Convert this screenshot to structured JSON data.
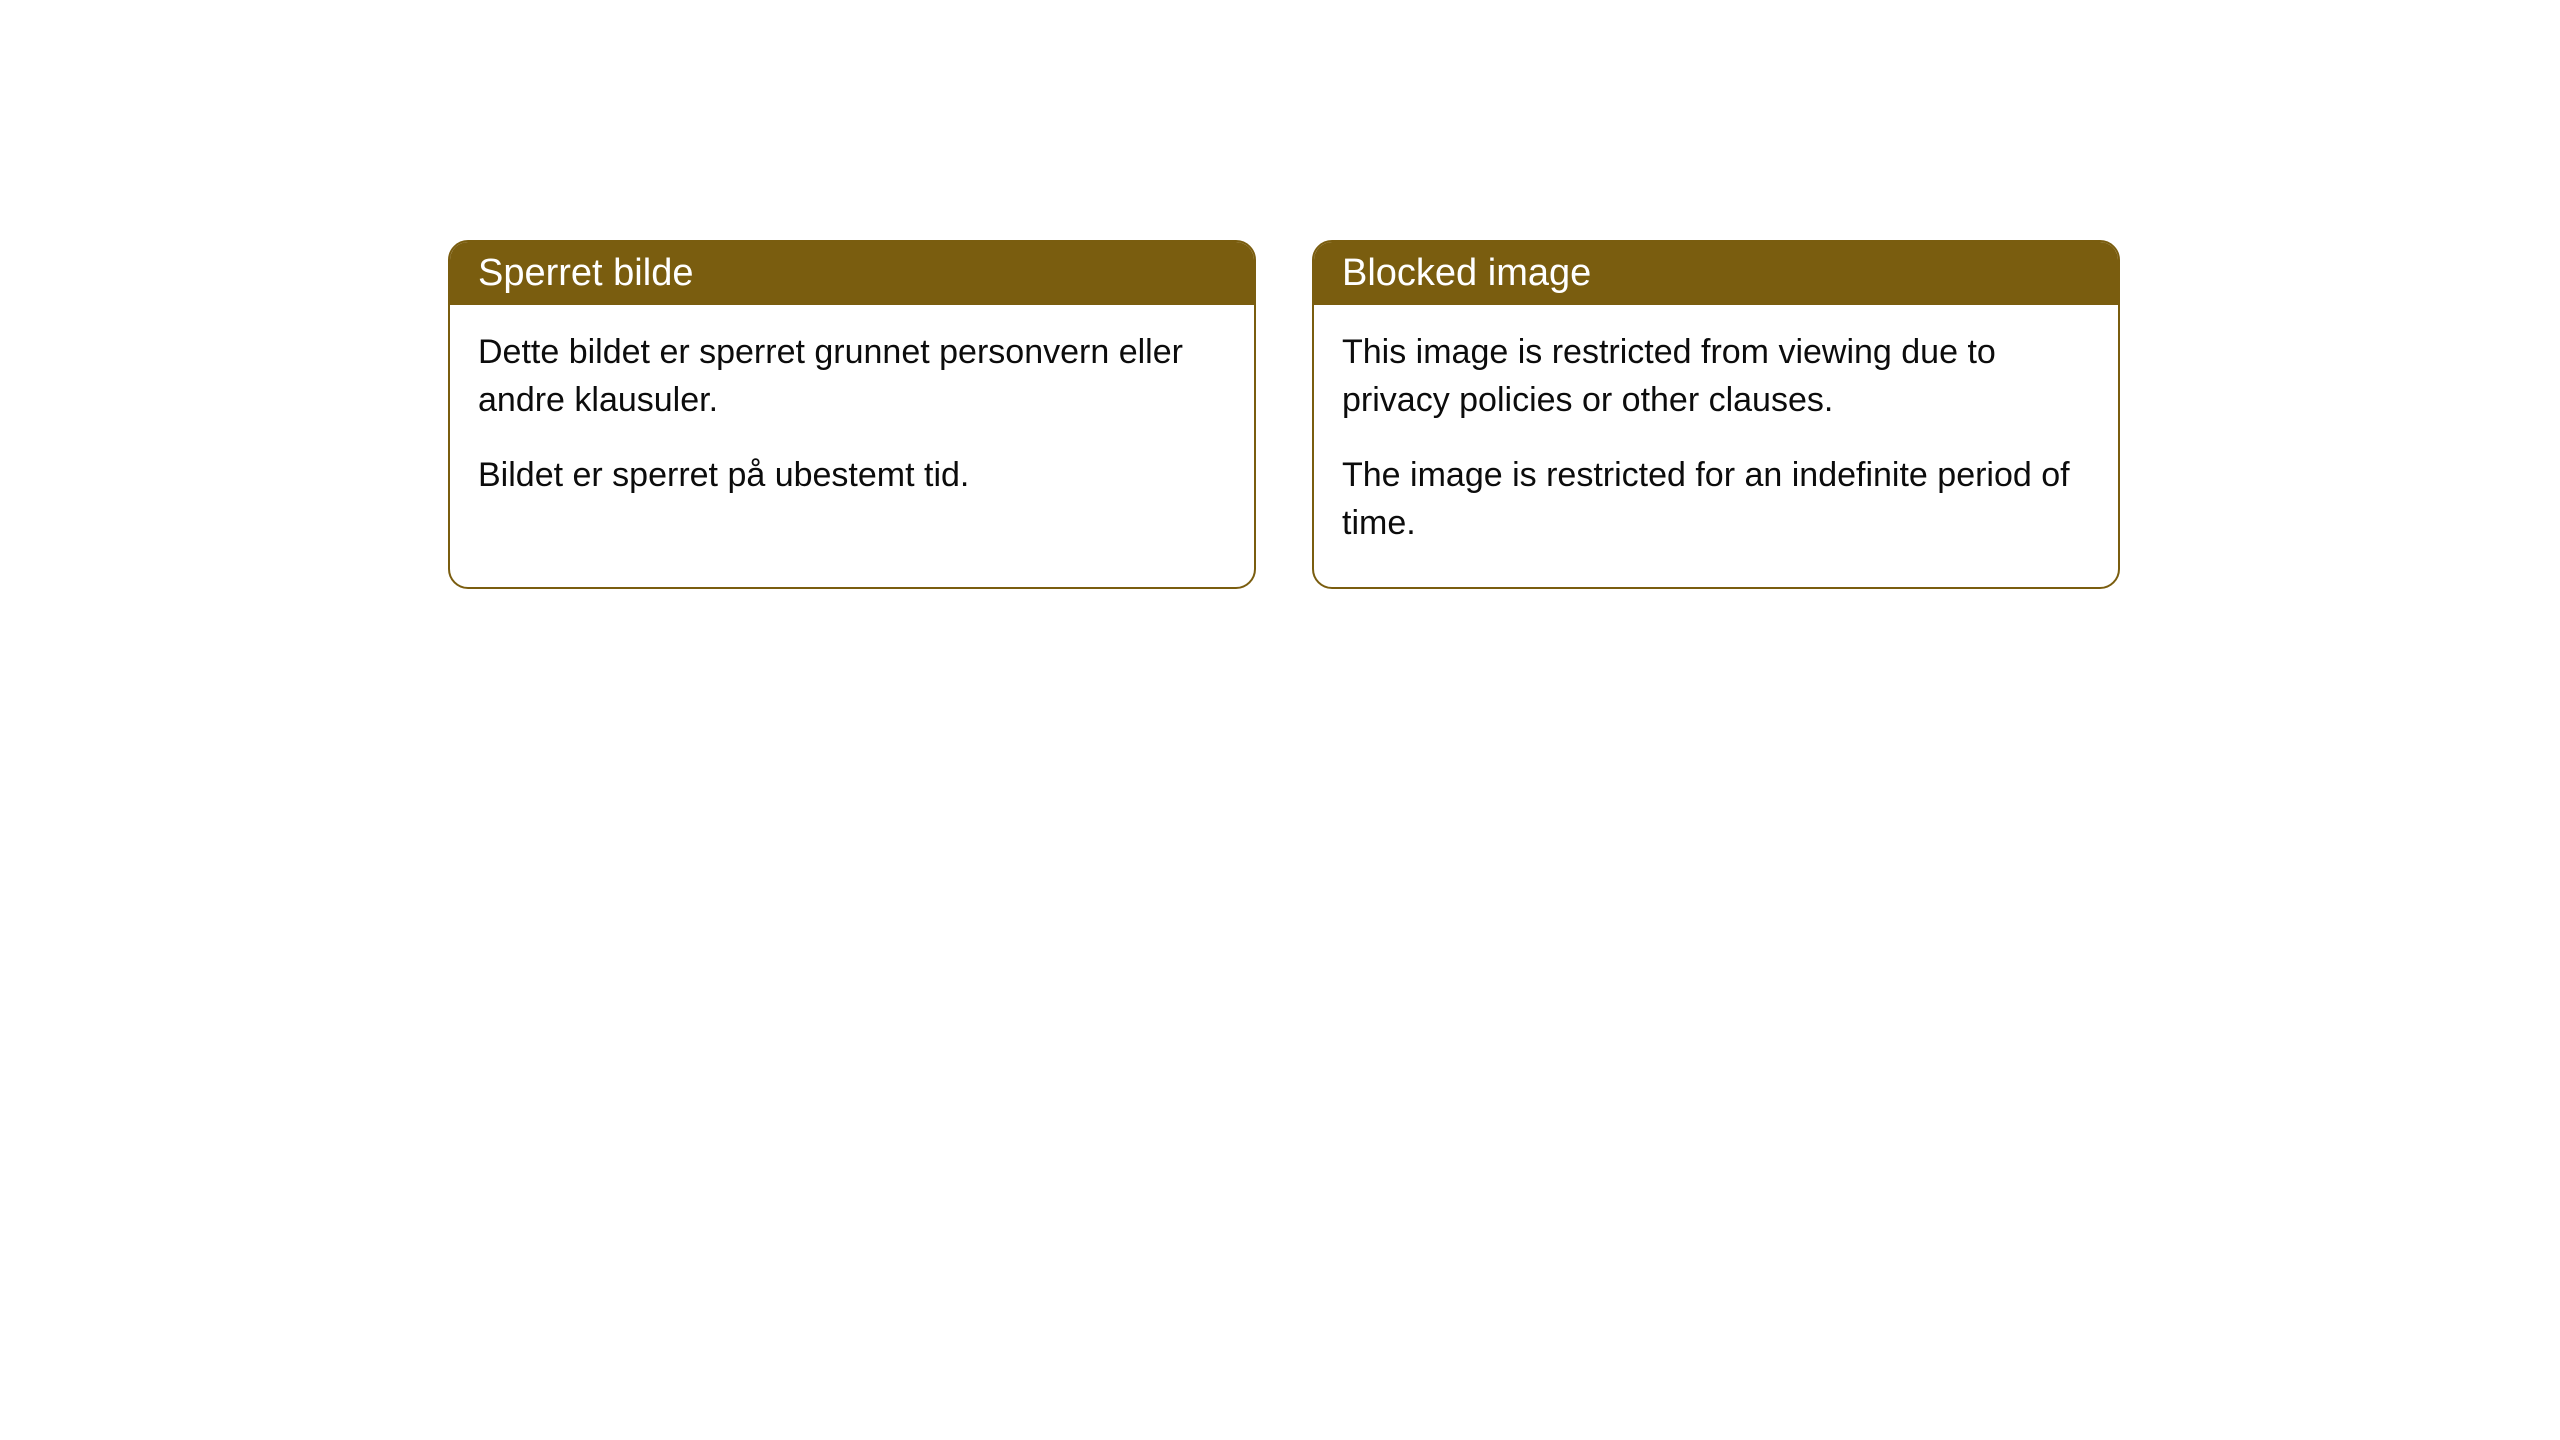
{
  "cards": [
    {
      "title": "Sperret bilde",
      "paragraph1": "Dette bildet er sperret grunnet personvern eller andre klausuler.",
      "paragraph2": "Bildet er sperret på ubestemt tid."
    },
    {
      "title": "Blocked image",
      "paragraph1": "This image is restricted from viewing due to privacy policies or other clauses.",
      "paragraph2": "The image is restricted for an indefinite period of time."
    }
  ],
  "styling": {
    "header_bg_color": "#7a5d0f",
    "header_text_color": "#ffffff",
    "border_color": "#7a5d0f",
    "body_text_color": "#0c0c0c",
    "card_bg_color": "#ffffff",
    "border_radius": 20,
    "title_fontsize": 38,
    "body_fontsize": 34
  }
}
